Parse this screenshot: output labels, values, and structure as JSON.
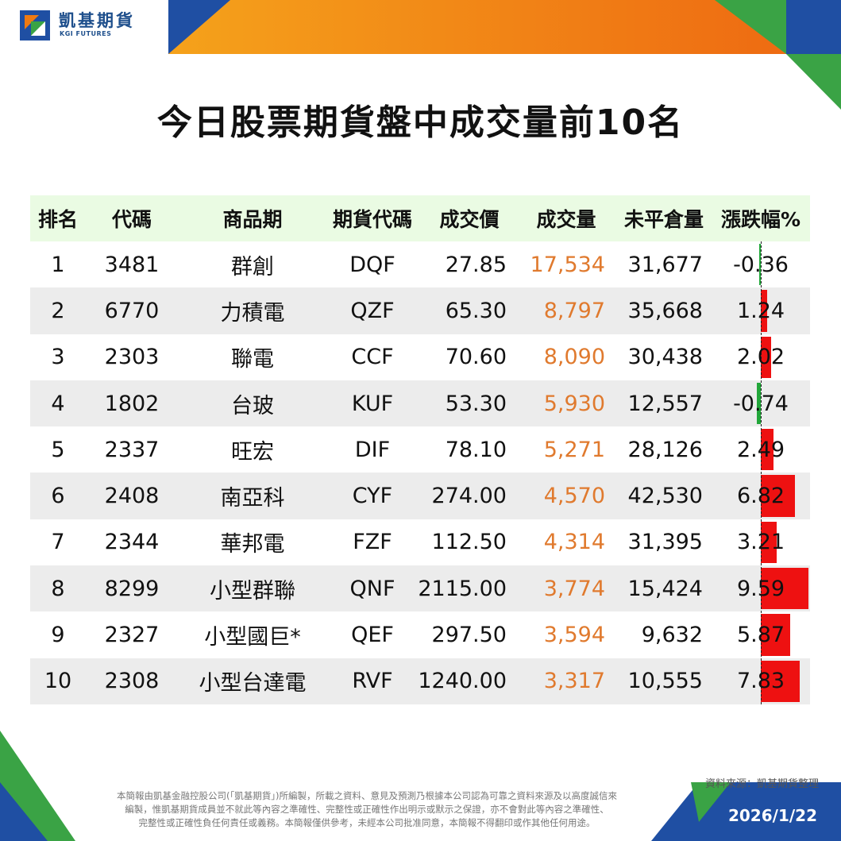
{
  "brand": {
    "name_cn": "凱基期貨",
    "name_en": "KGI FUTURES"
  },
  "title": "今日股票期貨盤中成交量前10名",
  "colors": {
    "blue": "#1f4fa3",
    "orange": "#f07a12",
    "green": "#3aa345",
    "volume": "#e07a2e",
    "up": "#ee1111",
    "down": "#22a63a"
  },
  "table": {
    "headers": [
      "排名",
      "代碼",
      "商品期",
      "期貨代碼",
      "成交價",
      "成交量",
      "未平倉量",
      "漲跌幅%"
    ],
    "rows": [
      {
        "rank": "1",
        "code": "3481",
        "name": "群創",
        "fut": "DQF",
        "price": "27.85",
        "volume": "17,534",
        "oi": "31,677",
        "chg": "-0.36",
        "chg_value": -0.36
      },
      {
        "rank": "2",
        "code": "6770",
        "name": "力積電",
        "fut": "QZF",
        "price": "65.30",
        "volume": "8,797",
        "oi": "35,668",
        "chg": "1.24",
        "chg_value": 1.24
      },
      {
        "rank": "3",
        "code": "2303",
        "name": "聯電",
        "fut": "CCF",
        "price": "70.60",
        "volume": "8,090",
        "oi": "30,438",
        "chg": "2.02",
        "chg_value": 2.02
      },
      {
        "rank": "4",
        "code": "1802",
        "name": "台玻",
        "fut": "KUF",
        "price": "53.30",
        "volume": "5,930",
        "oi": "12,557",
        "chg": "-0.74",
        "chg_value": -0.74
      },
      {
        "rank": "5",
        "code": "2337",
        "name": "旺宏",
        "fut": "DIF",
        "price": "78.10",
        "volume": "5,271",
        "oi": "28,126",
        "chg": "2.49",
        "chg_value": 2.49
      },
      {
        "rank": "6",
        "code": "2408",
        "name": "南亞科",
        "fut": "CYF",
        "price": "274.00",
        "volume": "4,570",
        "oi": "42,530",
        "chg": "6.82",
        "chg_value": 6.82
      },
      {
        "rank": "7",
        "code": "2344",
        "name": "華邦電",
        "fut": "FZF",
        "price": "112.50",
        "volume": "4,314",
        "oi": "31,395",
        "chg": "3.21",
        "chg_value": 3.21
      },
      {
        "rank": "8",
        "code": "8299",
        "name": "小型群聯",
        "fut": "QNF",
        "price": "2115.00",
        "volume": "3,774",
        "oi": "15,424",
        "chg": "9.59",
        "chg_value": 9.59
      },
      {
        "rank": "9",
        "code": "2327",
        "name": "小型國巨*",
        "fut": "QEF",
        "price": "297.50",
        "volume": "3,594",
        "oi": "9,632",
        "chg": "5.87",
        "chg_value": 5.87
      },
      {
        "rank": "10",
        "code": "2308",
        "name": "小型台達電",
        "fut": "RVF",
        "price": "1240.00",
        "volume": "3,317",
        "oi": "10,555",
        "chg": "7.83",
        "chg_value": 7.83
      }
    ]
  },
  "source": "資料來源：凱基期貨整理",
  "disclaimer": [
    "本簡報由凱基金融控股公司(「凱基期貨」)所編製，所載之資料、意見及預測乃根據本公司認為可靠之資料來源及以高度誠信來",
    "編製，惟凱基期貨成員並不就此等內容之準確性、完整性或正確性作出明示或默示之保證，亦不會對此等內容之準確性、",
    "完整性或正確性負任何責任或義務。本簡報僅供參考，未經本公司批准同意，本簡報不得翻印或作其他任何用途。"
  ],
  "date": "2026/1/22"
}
